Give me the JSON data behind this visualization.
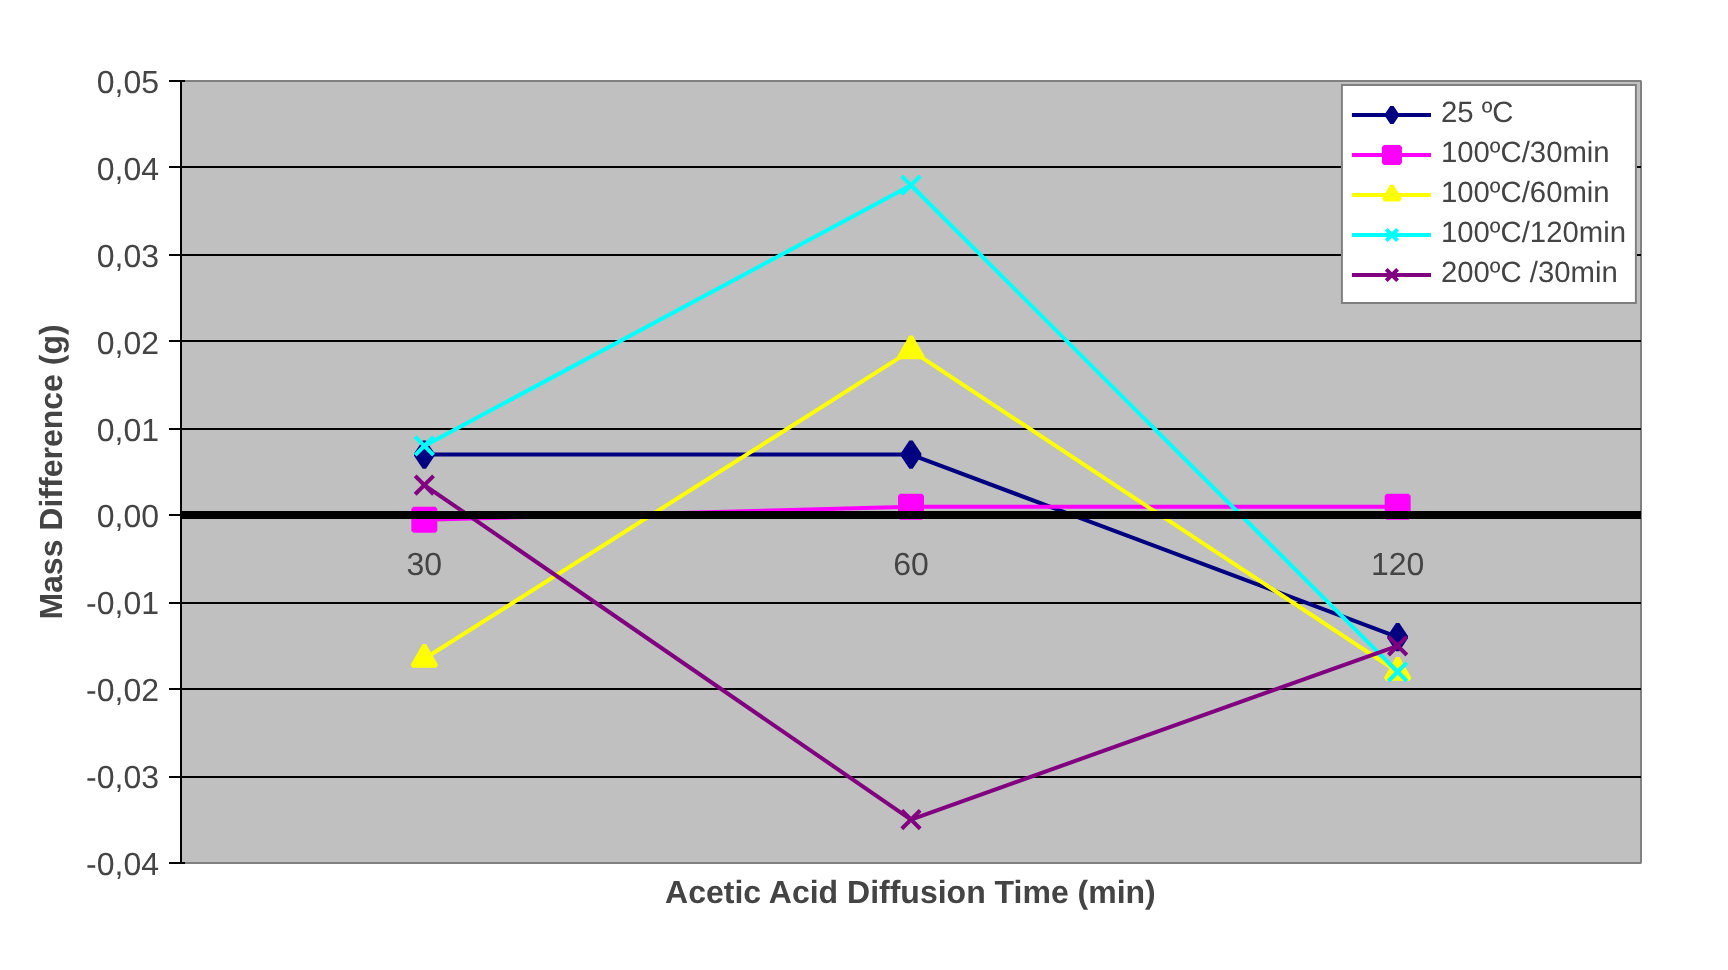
{
  "chart_data": {
    "type": "line",
    "xlabel": "Acetic Acid Diffusion Time (min)",
    "ylabel": "Mass Difference (g)",
    "categories": [
      "30",
      "60",
      "120"
    ],
    "series": [
      {
        "name": "25 ºC",
        "color": "#000080",
        "marker": "diamond",
        "values": [
          0.007,
          0.007,
          -0.014
        ]
      },
      {
        "name": "100ºC/30min",
        "color": "#ff00ff",
        "marker": "square",
        "values": [
          -0.0005,
          0.001,
          0.001
        ]
      },
      {
        "name": "100ºC/60min",
        "color": "#ffff00",
        "marker": "triangle",
        "values": [
          -0.0165,
          0.019,
          -0.018
        ]
      },
      {
        "name": "100ºC/120min",
        "color": "#00ffff",
        "marker": "cross",
        "values": [
          0.008,
          0.038,
          -0.018
        ]
      },
      {
        "name": "200ºC /30min",
        "color": "#800080",
        "marker": "cross",
        "values": [
          0.0035,
          -0.035,
          -0.015
        ]
      }
    ],
    "ylim": [
      -0.04,
      0.05
    ],
    "yticks": [
      {
        "value": -0.04,
        "label": "-0,04"
      },
      {
        "value": -0.03,
        "label": "-0,03"
      },
      {
        "value": -0.02,
        "label": "-0,02"
      },
      {
        "value": -0.01,
        "label": "-0,01"
      },
      {
        "value": 0,
        "label": "0,00"
      },
      {
        "value": 0.01,
        "label": "0,01"
      },
      {
        "value": 0.02,
        "label": "0,02"
      },
      {
        "value": 0.03,
        "label": "0,03"
      },
      {
        "value": 0.04,
        "label": "0,04"
      },
      {
        "value": 0.05,
        "label": "0,05"
      }
    ],
    "grid": "y",
    "legend": "top right"
  }
}
